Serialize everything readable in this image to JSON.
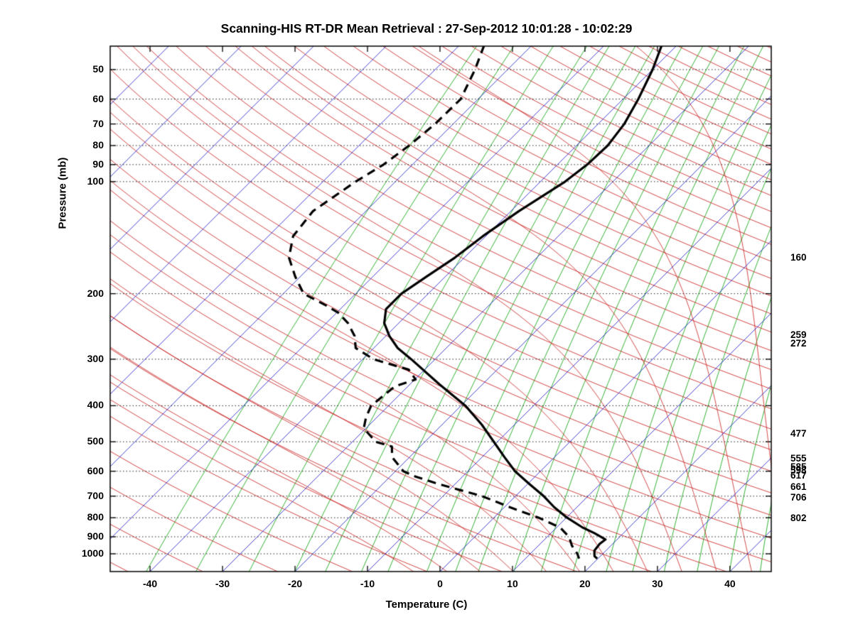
{
  "chart_data": {
    "type": "line",
    "diagram": "skew-t-log-p-sounding",
    "title": "Scanning-HIS RT-DR Mean Retrieval : 27-Sep-2012 10:01:28 - 10:02:29",
    "xlabel": "Temperature (C)",
    "ylabel": "Pressure (mb)",
    "x_ticks": [
      -40,
      -30,
      -20,
      -10,
      0,
      10,
      20,
      30,
      40
    ],
    "y_ticks": [
      50,
      60,
      70,
      80,
      90,
      100,
      200,
      300,
      400,
      500,
      600,
      700,
      800,
      900,
      1000
    ],
    "x_range_surface_c": [
      -45.5,
      45.7
    ],
    "p_range_mb": [
      43.25,
      1116
    ],
    "skew_deg": 45,
    "grid": "horizontal dotted lines at y_ticks",
    "right_pressure_labels_mb": [
      160,
      259,
      272,
      477,
      555,
      585,
      598,
      617,
      661,
      706,
      802
    ],
    "background": {
      "isotherms_c": {
        "color": "#1414C8",
        "min": -120,
        "max": 40,
        "step": 10
      },
      "dry_adiabats_theta_k": {
        "color": "#C81414",
        "min": 213,
        "max": 613,
        "step": 10
      },
      "moist_adiabats_thetaw_c": {
        "color": "#C81414",
        "min": -10,
        "max": 45,
        "step": 5
      },
      "mixing_ratio_g_kg": {
        "color": "#00A000",
        "values": [
          0.1,
          0.2,
          0.4,
          0.7,
          1,
          1.5,
          2,
          3,
          4,
          5,
          7,
          9,
          12,
          16,
          20,
          26,
          34,
          44,
          56
        ]
      },
      "pressure_grid_color": "#222222"
    },
    "series": [
      {
        "name": "temperature",
        "line": "solid",
        "color": "#000000",
        "width": 3.2,
        "points_p_t": [
          [
            43,
            -42.1
          ],
          [
            50,
            -40
          ],
          [
            60,
            -37.9
          ],
          [
            70,
            -36.4
          ],
          [
            80,
            -35.7
          ],
          [
            90,
            -35.9
          ],
          [
            100,
            -36.6
          ],
          [
            120,
            -38.9
          ],
          [
            140,
            -40.4
          ],
          [
            160,
            -41.3
          ],
          [
            180,
            -42.6
          ],
          [
            200,
            -43.7
          ],
          [
            220,
            -43.7
          ],
          [
            240,
            -42
          ],
          [
            260,
            -39.5
          ],
          [
            280,
            -36.7
          ],
          [
            300,
            -33.3
          ],
          [
            350,
            -26
          ],
          [
            400,
            -19.4
          ],
          [
            450,
            -14.5
          ],
          [
            500,
            -10.5
          ],
          [
            550,
            -6.9
          ],
          [
            600,
            -3.5
          ],
          [
            650,
            0.3
          ],
          [
            700,
            3.9
          ],
          [
            750,
            6.9
          ],
          [
            800,
            10.1
          ],
          [
            850,
            13.6
          ],
          [
            880,
            16
          ],
          [
            900,
            17.4
          ],
          [
            915,
            18.4
          ],
          [
            940,
            18.2
          ],
          [
            980,
            18.4
          ],
          [
            1015,
            19.2
          ],
          [
            1030,
            19.9
          ]
        ]
      },
      {
        "name": "dew_point",
        "line": "dashed",
        "color": "#000000",
        "width": 3.2,
        "points_p_t": [
          [
            43,
            -66.6
          ],
          [
            50,
            -64.5
          ],
          [
            60,
            -62.4
          ],
          [
            70,
            -62.5
          ],
          [
            80,
            -63.1
          ],
          [
            90,
            -64
          ],
          [
            100,
            -65.5
          ],
          [
            120,
            -67.3
          ],
          [
            140,
            -66.6
          ],
          [
            160,
            -64.2
          ],
          [
            180,
            -60.7
          ],
          [
            200,
            -57.2
          ],
          [
            215,
            -52.5
          ],
          [
            225,
            -49.8
          ],
          [
            240,
            -47
          ],
          [
            260,
            -44.3
          ],
          [
            280,
            -42.5
          ],
          [
            300,
            -38.5
          ],
          [
            320,
            -32.2
          ],
          [
            340,
            -29.9
          ],
          [
            355,
            -31.8
          ],
          [
            400,
            -32.4
          ],
          [
            430,
            -31.5
          ],
          [
            460,
            -30.3
          ],
          [
            500,
            -26.8
          ],
          [
            515,
            -23.9
          ],
          [
            550,
            -22.4
          ],
          [
            600,
            -18.9
          ],
          [
            620,
            -16.5
          ],
          [
            650,
            -12.2
          ],
          [
            700,
            -4.6
          ],
          [
            750,
            0.8
          ],
          [
            800,
            6.2
          ],
          [
            850,
            10.5
          ],
          [
            900,
            13
          ],
          [
            950,
            14.6
          ],
          [
            1000,
            16.5
          ],
          [
            1030,
            17.4
          ]
        ]
      }
    ]
  }
}
